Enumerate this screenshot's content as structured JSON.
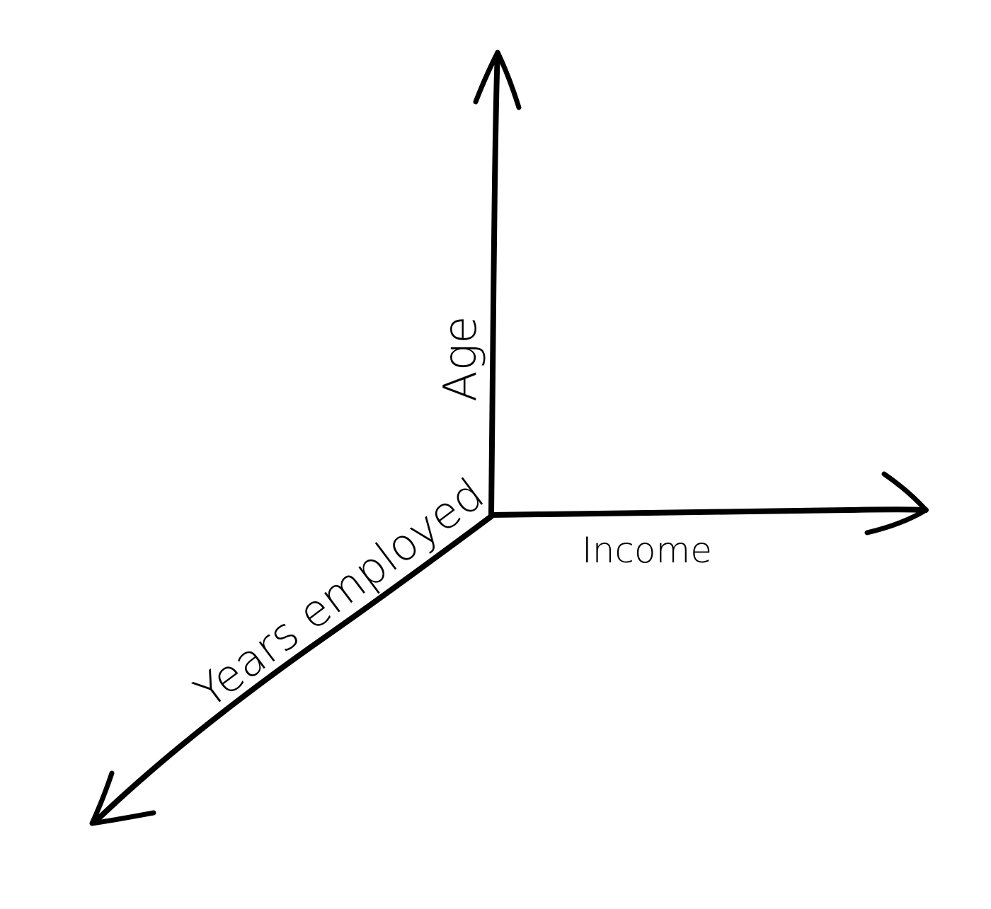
{
  "diagram": {
    "type": "3d-axes-sketch",
    "axes": {
      "vertical": {
        "label": "Age"
      },
      "horizontal": {
        "label": "Income"
      },
      "depth": {
        "label": "Years employed"
      }
    },
    "colors": {
      "ink": "#000000",
      "background": "#ffffff"
    }
  }
}
